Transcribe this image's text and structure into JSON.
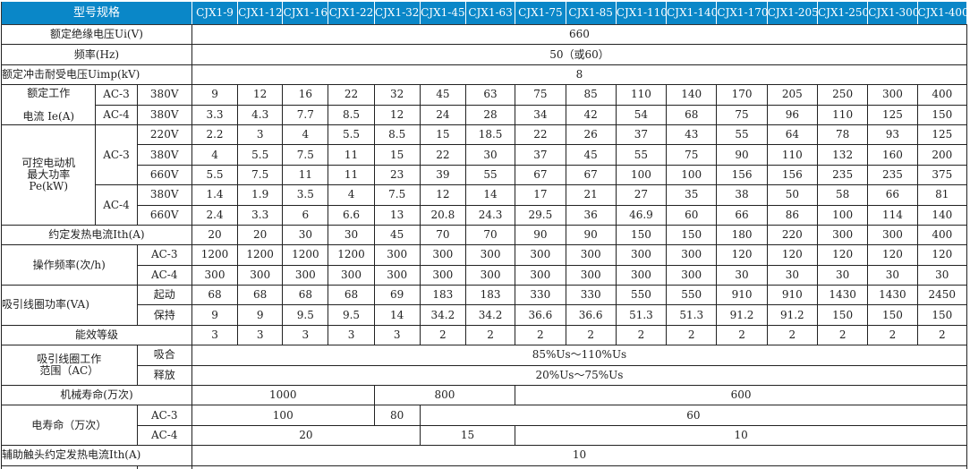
{
  "header": {
    "label": "型号规格",
    "models": [
      "CJX1-9",
      "CJX1-12",
      "CJX1-16",
      "CJX1-22",
      "CJX1-32",
      "CJX1-45",
      "CJX1-63",
      "CJX1-75",
      "CJX1-85",
      "CJX1-110",
      "CJX1-140",
      "CJX1-170",
      "CJX1-205",
      "CJX1-250",
      "CJX1-300",
      "CJX1-400"
    ]
  },
  "colors": {
    "header_bg": "#0a87c8",
    "header_text": "#ffffff"
  },
  "rows": {
    "ui": {
      "label": "额定绝缘电压Ui(V)",
      "value": "660"
    },
    "freq": {
      "label": "频率(Hz)",
      "value": "50（或60）"
    },
    "uimp": {
      "label": "额定冲击耐受电压Uimp(kV)",
      "value": "8"
    },
    "ie": {
      "label_1": "额定工作",
      "label_2": "电流 Ie(A)",
      "ac3": {
        "cat": "AC-3",
        "volt": "380V",
        "values": [
          "9",
          "12",
          "16",
          "22",
          "32",
          "45",
          "63",
          "75",
          "85",
          "110",
          "140",
          "170",
          "205",
          "250",
          "300",
          "400"
        ]
      },
      "ac4": {
        "cat": "AC-4",
        "volt": "380V",
        "values": [
          "3.3",
          "4.3",
          "7.7",
          "8.5",
          "12",
          "24",
          "28",
          "34",
          "42",
          "54",
          "68",
          "75",
          "96",
          "110",
          "125",
          "150"
        ]
      }
    },
    "pe": {
      "label_1": "可控电动机",
      "label_2": "最大功率",
      "label_3": "Pe(kW)",
      "ac3": {
        "cat": "AC-3",
        "v220": {
          "volt": "220V",
          "values": [
            "2.2",
            "3",
            "4",
            "5.5",
            "8.5",
            "15",
            "18.5",
            "22",
            "26",
            "37",
            "43",
            "55",
            "64",
            "78",
            "93",
            "125"
          ]
        },
        "v380": {
          "volt": "380V",
          "values": [
            "4",
            "5.5",
            "7.5",
            "11",
            "15",
            "22",
            "30",
            "37",
            "45",
            "55",
            "75",
            "90",
            "110",
            "132",
            "160",
            "200"
          ]
        },
        "v660": {
          "volt": "660V",
          "values": [
            "5.5",
            "7.5",
            "11",
            "11",
            "23",
            "39",
            "55",
            "67",
            "67",
            "100",
            "100",
            "156",
            "156",
            "235",
            "235",
            "375"
          ]
        }
      },
      "ac4": {
        "cat": "AC-4",
        "v380": {
          "volt": "380V",
          "values": [
            "1.4",
            "1.9",
            "3.5",
            "4",
            "7.5",
            "12",
            "14",
            "17",
            "21",
            "27",
            "35",
            "38",
            "50",
            "58",
            "66",
            "81"
          ]
        },
        "v660": {
          "volt": "660V",
          "values": [
            "2.4",
            "3.3",
            "6",
            "6.6",
            "13",
            "20.8",
            "24.3",
            "29.5",
            "36",
            "46.9",
            "60",
            "66",
            "86",
            "100",
            "114",
            "140"
          ]
        }
      }
    },
    "ith": {
      "label": "约定发热电流Ith(A)",
      "values": [
        "20",
        "20",
        "30",
        "30",
        "45",
        "70",
        "70",
        "90",
        "90",
        "150",
        "150",
        "180",
        "220",
        "300",
        "300",
        "400"
      ]
    },
    "opfreq": {
      "label": "操作频率(次/h)",
      "ac3": {
        "cat": "AC-3",
        "values": [
          "1200",
          "1200",
          "1200",
          "1200",
          "300",
          "300",
          "300",
          "300",
          "300",
          "300",
          "300",
          "120",
          "120",
          "120",
          "120",
          "120"
        ]
      },
      "ac4": {
        "cat": "AC-4",
        "values": [
          "300",
          "300",
          "300",
          "300",
          "300",
          "300",
          "300",
          "300",
          "300",
          "300",
          "300",
          "30",
          "30",
          "30",
          "30",
          "30"
        ]
      }
    },
    "coil_power": {
      "label": "吸引线圈功率(VA)",
      "start": {
        "cat": "起动",
        "values": [
          "68",
          "68",
          "68",
          "68",
          "69",
          "183",
          "183",
          "330",
          "330",
          "550",
          "550",
          "910",
          "910",
          "1430",
          "1430",
          "2450"
        ]
      },
      "hold": {
        "cat": "保持",
        "values": [
          "9",
          "9",
          "9.5",
          "9.5",
          "14",
          "34.2",
          "34.2",
          "36.6",
          "36.6",
          "51.3",
          "51.3",
          "91.2",
          "91.2",
          "150",
          "150",
          "150"
        ]
      }
    },
    "efficiency": {
      "label": "能效等级",
      "values": [
        "3",
        "3",
        "3",
        "3",
        "3",
        "2",
        "2",
        "2",
        "2",
        "2",
        "2",
        "2",
        "2",
        "2",
        "2",
        "2"
      ]
    },
    "coil_range": {
      "label_1": "吸引线圈工作",
      "label_2": "范围（AC）",
      "pickup": {
        "cat": "吸合",
        "value": "85%Us～110%Us"
      },
      "release": {
        "cat": "释放",
        "value": "20%Us～75%Us"
      }
    },
    "mech_life": {
      "label": "机械寿命(万次)",
      "values": [
        "1000",
        "800",
        "600"
      ]
    },
    "elec_life": {
      "label": "电寿命（万次）",
      "ac3": {
        "cat": "AC-3",
        "values": [
          "100",
          "80",
          "60"
        ]
      },
      "ac4": {
        "cat": "AC-4",
        "values": [
          "20",
          "15",
          "10"
        ]
      }
    },
    "aux_ith": {
      "label": "辅助触头约定发热电流Ith(A)",
      "value": "10"
    }
  }
}
